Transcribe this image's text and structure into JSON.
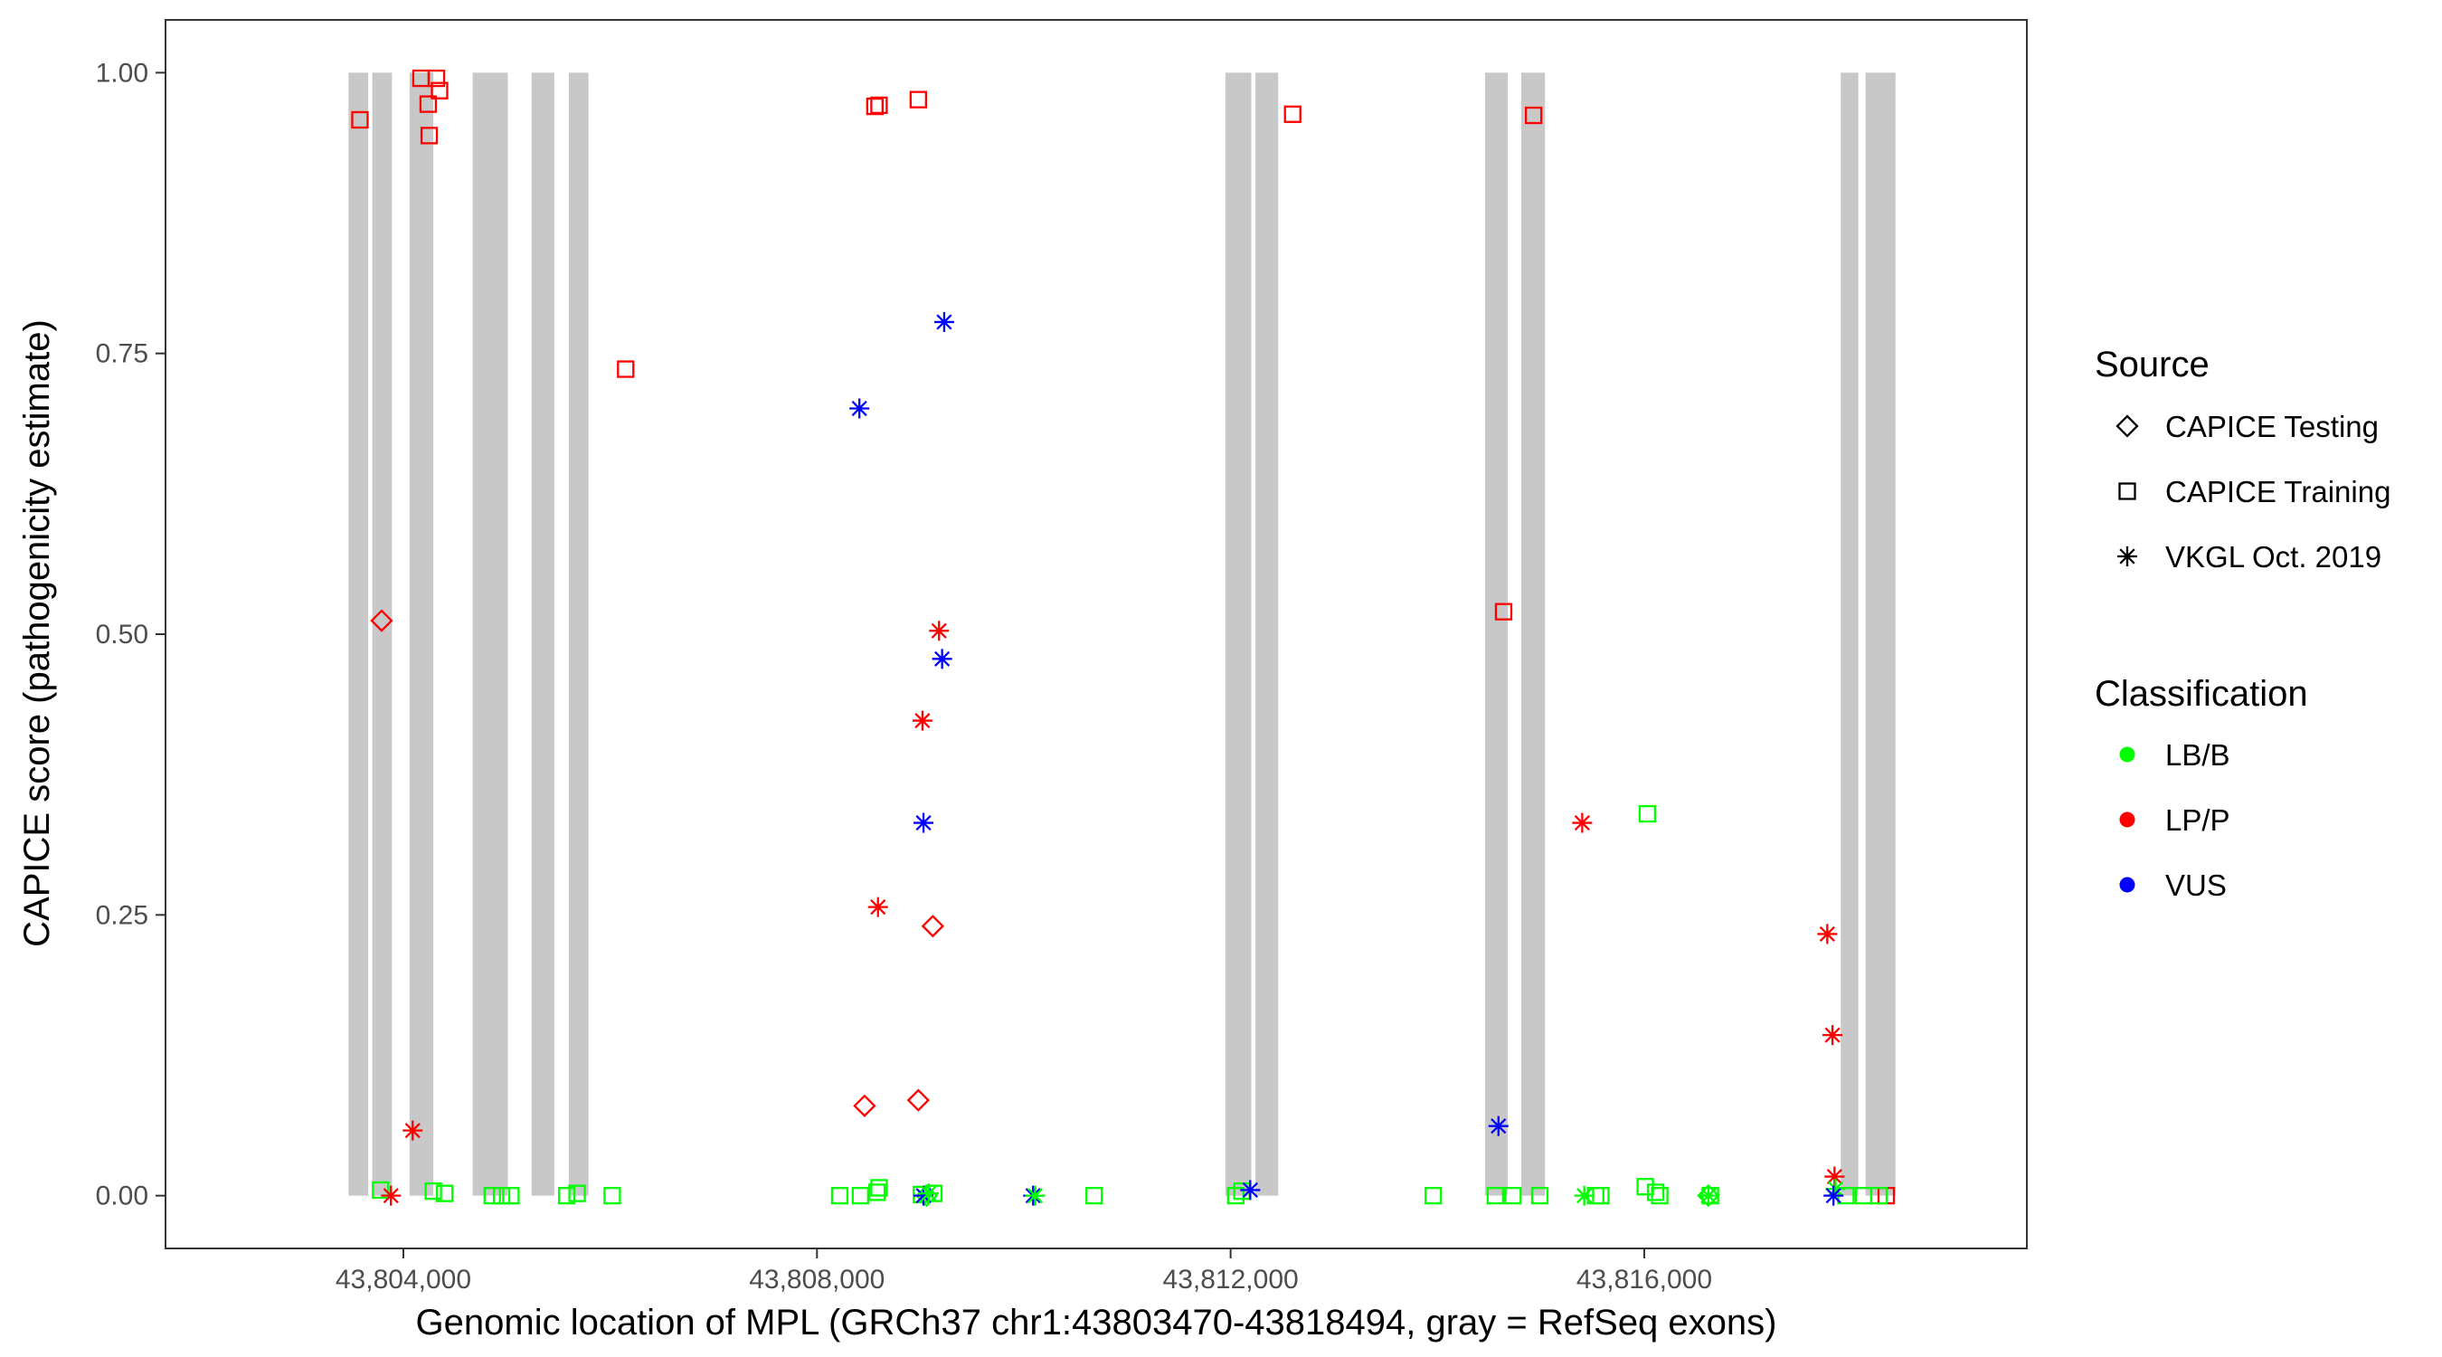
{
  "chart_data": {
    "type": "scatter",
    "title": "",
    "xlabel": "Genomic location of MPL (GRCh37 chr1:43803470-43818494, gray = RefSeq exons)",
    "ylabel": "CAPICE score (pathogenicity estimate)",
    "xlim": [
      43801700,
      43819700
    ],
    "ylim": [
      -0.047,
      1.047
    ],
    "x_ticks": [
      43804000,
      43808000,
      43812000,
      43816000
    ],
    "x_tick_labels": [
      "43,804,000",
      "43,808,000",
      "43,812,000",
      "43,816,000"
    ],
    "y_ticks": [
      0,
      0.25,
      0.5,
      0.75,
      1.0
    ],
    "y_tick_labels": [
      "0.00",
      "0.25",
      "0.50",
      "0.75",
      "1.00"
    ],
    "grid": false,
    "exon_color": "#c8c8c8",
    "exons": [
      [
        43803470,
        43803660
      ],
      [
        43803700,
        43803890
      ],
      [
        43804060,
        43804290
      ],
      [
        43804670,
        43805010
      ],
      [
        43805240,
        43805460
      ],
      [
        43805600,
        43805790
      ],
      [
        43811950,
        43812200
      ],
      [
        43812240,
        43812460
      ],
      [
        43814460,
        43814680
      ],
      [
        43814810,
        43815040
      ],
      [
        43817900,
        43818070
      ],
      [
        43818140,
        43818430
      ]
    ],
    "legend": {
      "position": "right",
      "source": {
        "title": "Source",
        "entries": [
          {
            "label": "CAPICE Testing",
            "shape": "diamond"
          },
          {
            "label": "CAPICE Training",
            "shape": "square"
          },
          {
            "label": "VKGL Oct. 2019",
            "shape": "asterisk"
          }
        ]
      },
      "classification": {
        "title": "Classification",
        "entries": [
          {
            "label": "LB/B",
            "color": "#00ff00"
          },
          {
            "label": "LP/P",
            "color": "#ff0000"
          },
          {
            "label": "VUS",
            "color": "#0000ff"
          }
        ]
      }
    },
    "points": [
      {
        "x": 43803580,
        "y": 0.958,
        "source": "CAPICE Training",
        "cls": "LP/P"
      },
      {
        "x": 43804170,
        "y": 0.995,
        "source": "CAPICE Training",
        "cls": "LP/P"
      },
      {
        "x": 43804320,
        "y": 0.995,
        "source": "CAPICE Training",
        "cls": "LP/P"
      },
      {
        "x": 43804350,
        "y": 0.984,
        "source": "CAPICE Training",
        "cls": "LP/P"
      },
      {
        "x": 43804240,
        "y": 0.972,
        "source": "CAPICE Training",
        "cls": "LP/P"
      },
      {
        "x": 43804250,
        "y": 0.944,
        "source": "CAPICE Training",
        "cls": "LP/P"
      },
      {
        "x": 43806150,
        "y": 0.736,
        "source": "CAPICE Training",
        "cls": "LP/P"
      },
      {
        "x": 43808560,
        "y": 0.97,
        "source": "CAPICE Training",
        "cls": "LP/P"
      },
      {
        "x": 43808600,
        "y": 0.971,
        "source": "CAPICE Training",
        "cls": "LP/P"
      },
      {
        "x": 43808980,
        "y": 0.976,
        "source": "CAPICE Training",
        "cls": "LP/P"
      },
      {
        "x": 43812600,
        "y": 0.963,
        "source": "CAPICE Training",
        "cls": "LP/P"
      },
      {
        "x": 43814640,
        "y": 0.52,
        "source": "CAPICE Training",
        "cls": "LP/P"
      },
      {
        "x": 43814930,
        "y": 0.962,
        "source": "CAPICE Training",
        "cls": "LP/P"
      },
      {
        "x": 43816030,
        "y": 0.34,
        "source": "CAPICE Training",
        "cls": "LB/B"
      },
      {
        "x": 43818340,
        "y": 0.0,
        "source": "CAPICE Training",
        "cls": "LP/P"
      },
      {
        "x": 43803780,
        "y": 0.005,
        "source": "CAPICE Training",
        "cls": "LB/B"
      },
      {
        "x": 43804290,
        "y": 0.004,
        "source": "CAPICE Training",
        "cls": "LB/B"
      },
      {
        "x": 43804400,
        "y": 0.002,
        "source": "CAPICE Training",
        "cls": "LB/B"
      },
      {
        "x": 43804860,
        "y": 0.0,
        "source": "CAPICE Training",
        "cls": "LB/B"
      },
      {
        "x": 43804950,
        "y": 0.0,
        "source": "CAPICE Training",
        "cls": "LB/B"
      },
      {
        "x": 43805040,
        "y": 0.0,
        "source": "CAPICE Training",
        "cls": "LB/B"
      },
      {
        "x": 43805580,
        "y": 0.0,
        "source": "CAPICE Training",
        "cls": "LB/B"
      },
      {
        "x": 43805680,
        "y": 0.002,
        "source": "CAPICE Training",
        "cls": "LB/B"
      },
      {
        "x": 43806020,
        "y": 0.0,
        "source": "CAPICE Training",
        "cls": "LB/B"
      },
      {
        "x": 43808220,
        "y": 0.0,
        "source": "CAPICE Training",
        "cls": "LB/B"
      },
      {
        "x": 43808420,
        "y": 0.0,
        "source": "CAPICE Training",
        "cls": "LB/B"
      },
      {
        "x": 43808580,
        "y": 0.003,
        "source": "CAPICE Training",
        "cls": "LB/B"
      },
      {
        "x": 43808600,
        "y": 0.007,
        "source": "CAPICE Training",
        "cls": "LB/B"
      },
      {
        "x": 43809010,
        "y": 0.001,
        "source": "CAPICE Training",
        "cls": "LB/B"
      },
      {
        "x": 43809130,
        "y": 0.002,
        "source": "CAPICE Training",
        "cls": "LB/B"
      },
      {
        "x": 43810680,
        "y": 0.0,
        "source": "CAPICE Training",
        "cls": "LB/B"
      },
      {
        "x": 43812050,
        "y": 0.0,
        "source": "CAPICE Training",
        "cls": "LB/B"
      },
      {
        "x": 43812110,
        "y": 0.004,
        "source": "CAPICE Training",
        "cls": "LB/B"
      },
      {
        "x": 43813960,
        "y": 0.0,
        "source": "CAPICE Training",
        "cls": "LB/B"
      },
      {
        "x": 43814560,
        "y": 0.0,
        "source": "CAPICE Training",
        "cls": "LB/B"
      },
      {
        "x": 43814730,
        "y": 0.0,
        "source": "CAPICE Training",
        "cls": "LB/B"
      },
      {
        "x": 43814990,
        "y": 0.0,
        "source": "CAPICE Training",
        "cls": "LB/B"
      },
      {
        "x": 43815530,
        "y": 0.0,
        "source": "CAPICE Training",
        "cls": "LB/B"
      },
      {
        "x": 43815580,
        "y": 0.0,
        "source": "CAPICE Training",
        "cls": "LB/B"
      },
      {
        "x": 43816010,
        "y": 0.008,
        "source": "CAPICE Training",
        "cls": "LB/B"
      },
      {
        "x": 43816110,
        "y": 0.003,
        "source": "CAPICE Training",
        "cls": "LB/B"
      },
      {
        "x": 43816150,
        "y": 0.0,
        "source": "CAPICE Training",
        "cls": "LB/B"
      },
      {
        "x": 43816640,
        "y": 0.0,
        "source": "CAPICE Training",
        "cls": "LB/B"
      },
      {
        "x": 43817950,
        "y": 0.0,
        "source": "CAPICE Training",
        "cls": "LB/B"
      },
      {
        "x": 43818120,
        "y": 0.0,
        "source": "CAPICE Training",
        "cls": "LB/B"
      },
      {
        "x": 43818270,
        "y": 0.0,
        "source": "CAPICE Training",
        "cls": "LB/B"
      },
      {
        "x": 43803790,
        "y": 0.512,
        "source": "CAPICE Testing",
        "cls": "LP/P"
      },
      {
        "x": 43808460,
        "y": 0.08,
        "source": "CAPICE Testing",
        "cls": "LP/P"
      },
      {
        "x": 43808980,
        "y": 0.085,
        "source": "CAPICE Testing",
        "cls": "LP/P"
      },
      {
        "x": 43809120,
        "y": 0.24,
        "source": "CAPICE Testing",
        "cls": "LP/P"
      },
      {
        "x": 43809060,
        "y": 0.0,
        "source": "CAPICE Testing",
        "cls": "LB/B"
      },
      {
        "x": 43816620,
        "y": 0.0,
        "source": "CAPICE Testing",
        "cls": "LB/B"
      },
      {
        "x": 43803880,
        "y": 0.0,
        "source": "VKGL Oct. 2019",
        "cls": "LP/P"
      },
      {
        "x": 43804090,
        "y": 0.058,
        "source": "VKGL Oct. 2019",
        "cls": "LP/P"
      },
      {
        "x": 43808410,
        "y": 0.701,
        "source": "VKGL Oct. 2019",
        "cls": "VUS"
      },
      {
        "x": 43809230,
        "y": 0.778,
        "source": "VKGL Oct. 2019",
        "cls": "VUS"
      },
      {
        "x": 43809180,
        "y": 0.503,
        "source": "VKGL Oct. 2019",
        "cls": "LP/P"
      },
      {
        "x": 43809210,
        "y": 0.478,
        "source": "VKGL Oct. 2019",
        "cls": "VUS"
      },
      {
        "x": 43809020,
        "y": 0.423,
        "source": "VKGL Oct. 2019",
        "cls": "LP/P"
      },
      {
        "x": 43809030,
        "y": 0.332,
        "source": "VKGL Oct. 2019",
        "cls": "VUS"
      },
      {
        "x": 43808590,
        "y": 0.257,
        "source": "VKGL Oct. 2019",
        "cls": "LP/P"
      },
      {
        "x": 43809030,
        "y": 0.0,
        "source": "VKGL Oct. 2019",
        "cls": "VUS"
      },
      {
        "x": 43809080,
        "y": 0.002,
        "source": "VKGL Oct. 2019",
        "cls": "LB/B"
      },
      {
        "x": 43810090,
        "y": 0.0,
        "source": "VKGL Oct. 2019",
        "cls": "VUS"
      },
      {
        "x": 43810110,
        "y": 0.0,
        "source": "VKGL Oct. 2019",
        "cls": "LB/B"
      },
      {
        "x": 43812190,
        "y": 0.005,
        "source": "VKGL Oct. 2019",
        "cls": "VUS"
      },
      {
        "x": 43814590,
        "y": 0.062,
        "source": "VKGL Oct. 2019",
        "cls": "VUS"
      },
      {
        "x": 43815400,
        "y": 0.332,
        "source": "VKGL Oct. 2019",
        "cls": "LP/P"
      },
      {
        "x": 43815420,
        "y": 0.0,
        "source": "VKGL Oct. 2019",
        "cls": "LB/B"
      },
      {
        "x": 43816620,
        "y": 0.0,
        "source": "VKGL Oct. 2019",
        "cls": "LB/B"
      },
      {
        "x": 43817770,
        "y": 0.233,
        "source": "VKGL Oct. 2019",
        "cls": "LP/P"
      },
      {
        "x": 43817820,
        "y": 0.143,
        "source": "VKGL Oct. 2019",
        "cls": "LP/P"
      },
      {
        "x": 43817840,
        "y": 0.017,
        "source": "VKGL Oct. 2019",
        "cls": "LP/P"
      },
      {
        "x": 43817850,
        "y": 0.006,
        "source": "VKGL Oct. 2019",
        "cls": "LB/B"
      },
      {
        "x": 43817830,
        "y": 0.0,
        "source": "VKGL Oct. 2019",
        "cls": "VUS"
      }
    ]
  }
}
